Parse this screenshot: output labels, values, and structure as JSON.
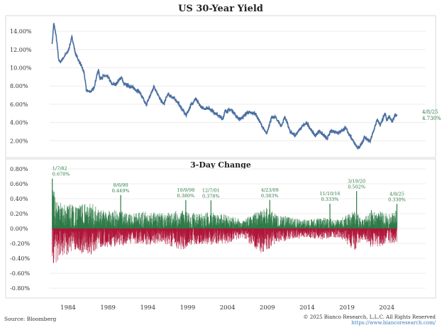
{
  "chart_data": [
    {
      "type": "line",
      "title": "US 30-Year Yield",
      "ylim": [
        0,
        15
      ],
      "y_ticks": [
        "2.00%",
        "4.00%",
        "6.00%",
        "8.00%",
        "10.00%",
        "12.00%",
        "14.00%"
      ],
      "y_tick_values": [
        2,
        4,
        6,
        8,
        10,
        12,
        14
      ],
      "grid": true,
      "color": "#4a6fa0",
      "series": [
        {
          "x": [
            1982.0,
            1982.2,
            1982.5,
            1982.8,
            1983.0,
            1983.5,
            1984.0,
            1984.5,
            1984.9,
            1985.5,
            1986.0,
            1986.3,
            1986.8,
            1987.2,
            1987.8,
            1988.0,
            1988.5,
            1989.0,
            1989.5,
            1990.0,
            1990.7,
            1991.0,
            1992.0,
            1993.0,
            1993.8,
            1994.8,
            1995.5,
            1996.0,
            1996.5,
            1997.5,
            1998.0,
            1998.8,
            1999.5,
            2000.0,
            2000.5,
            2001.0,
            2001.5,
            2002.0,
            2002.5,
            2003.4,
            2003.7,
            2004.5,
            2005.5,
            2006.5,
            2007.5,
            2008.9,
            2009.5,
            2010.0,
            2010.8,
            2011.2,
            2011.9,
            2012.5,
            2013.5,
            2014.0,
            2015.0,
            2015.5,
            2016.5,
            2017.0,
            2018.0,
            2018.8,
            2019.8,
            2020.3,
            2020.6,
            2021.2,
            2021.9,
            2022.8,
            2023.2,
            2023.8,
            2024.0,
            2024.3,
            2024.7,
            2025.0,
            2025.27
          ],
          "y": [
            12.6,
            14.9,
            13.5,
            11.0,
            10.6,
            11.2,
            11.8,
            13.4,
            11.6,
            10.5,
            9.5,
            7.5,
            7.4,
            7.7,
            9.8,
            8.8,
            9.1,
            9.0,
            8.2,
            8.2,
            9.0,
            8.2,
            7.9,
            7.3,
            5.9,
            8.0,
            6.6,
            6.0,
            7.1,
            6.5,
            5.9,
            4.8,
            6.0,
            6.6,
            5.9,
            5.5,
            5.6,
            5.4,
            5.0,
            4.4,
            5.2,
            5.4,
            4.3,
            5.1,
            5.0,
            2.7,
            4.5,
            4.6,
            3.6,
            4.7,
            2.9,
            2.6,
            3.7,
            3.9,
            2.5,
            3.1,
            2.2,
            3.1,
            2.9,
            3.4,
            2.0,
            1.2,
            1.3,
            2.4,
            1.9,
            4.3,
            3.7,
            5.0,
            4.2,
            4.7,
            4.0,
            4.8,
            4.73
          ]
        }
      ],
      "annotation": {
        "date": "4/8/25",
        "value": "4.730%"
      }
    },
    {
      "type": "bar",
      "title": "3-Day Change",
      "ylim": [
        -0.8,
        0.8
      ],
      "y_ticks": [
        "0.80%",
        "0.60%",
        "0.40%",
        "0.20%",
        "0.00%",
        "-0.20%",
        "-0.40%",
        "-0.60%",
        "-0.80%"
      ],
      "y_tick_values": [
        0.8,
        0.6,
        0.4,
        0.2,
        0,
        -0.2,
        -0.4,
        -0.6,
        -0.8
      ],
      "grid": true,
      "positive_color": "#2e7a47",
      "negative_color": "#b0163a",
      "approx_envelope_by_year": {
        "years": [
          1982,
          1983,
          1984,
          1985,
          1986,
          1987,
          1988,
          1990,
          1992,
          1994,
          1996,
          1998,
          2000,
          2002,
          2004,
          2006,
          2008,
          2009,
          2010,
          2012,
          2014,
          2016,
          2018,
          2020,
          2021,
          2022,
          2023,
          2024,
          2025
        ],
        "up": [
          0.55,
          0.35,
          0.35,
          0.3,
          0.35,
          0.35,
          0.25,
          0.25,
          0.2,
          0.25,
          0.2,
          0.25,
          0.2,
          0.22,
          0.18,
          0.12,
          0.25,
          0.3,
          0.2,
          0.15,
          0.12,
          0.15,
          0.12,
          0.25,
          0.12,
          0.25,
          0.25,
          0.2,
          0.25
        ],
        "down": [
          -0.55,
          -0.4,
          -0.35,
          -0.3,
          -0.4,
          -0.35,
          -0.25,
          -0.25,
          -0.2,
          -0.22,
          -0.2,
          -0.3,
          -0.22,
          -0.22,
          -0.2,
          -0.12,
          -0.35,
          -0.3,
          -0.2,
          -0.15,
          -0.12,
          -0.15,
          -0.12,
          -0.3,
          -0.15,
          -0.25,
          -0.25,
          -0.2,
          -0.2
        ]
      },
      "annotations": [
        {
          "x": 1982.02,
          "date": "1/7/82",
          "value": "0.670%",
          "y": 0.67
        },
        {
          "x": 1990.6,
          "date": "8/6/90",
          "value": "0.449%",
          "y": 0.449
        },
        {
          "x": 1998.77,
          "date": "10/9/98",
          "value": "0.380%",
          "y": 0.38
        },
        {
          "x": 2001.93,
          "date": "12/7/01",
          "value": "0.378%",
          "y": 0.378
        },
        {
          "x": 2009.31,
          "date": "4/23/09",
          "value": "0.383%",
          "y": 0.383
        },
        {
          "x": 2016.86,
          "date": "11/10/16",
          "value": "0.333%",
          "y": 0.333
        },
        {
          "x": 2020.21,
          "date": "3/19/20",
          "value": "0.502%",
          "y": 0.502
        },
        {
          "x": 2025.27,
          "date": "4/8/25",
          "value": "0.330%",
          "y": 0.33
        }
      ],
      "x_ticks": [
        "1984",
        "1989",
        "1994",
        "1999",
        "2004",
        "2009",
        "2014",
        "2019",
        "2024"
      ],
      "x_tick_values": [
        1984,
        1989,
        1994,
        1999,
        2004,
        2009,
        2014,
        2019,
        2024
      ]
    }
  ],
  "footer": {
    "source": "Source: Bloomberg",
    "copyright": "© 2025 Bianco Research, L.L.C. All Rights Reserved",
    "url": "https://www.biancoresearch.com/"
  }
}
